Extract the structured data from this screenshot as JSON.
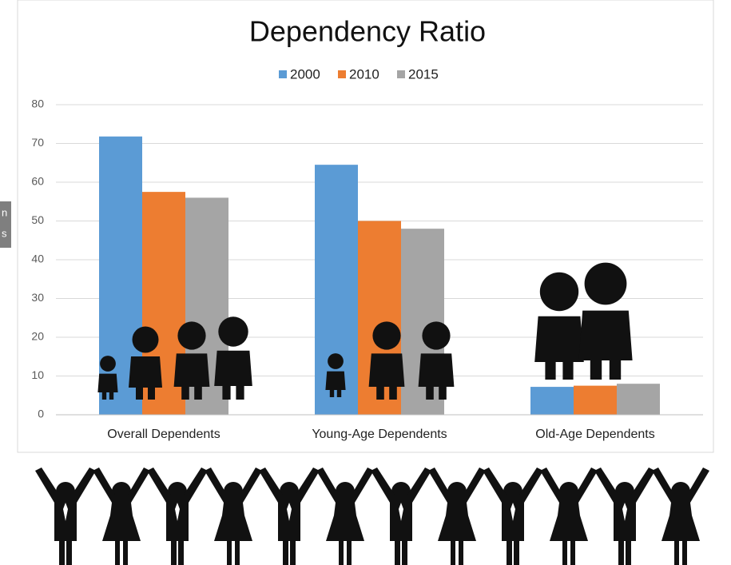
{
  "chart_data": {
    "type": "bar",
    "title": "Dependency Ratio",
    "categories": [
      "Overall Dependents",
      "Young-Age Dependents",
      "Old-Age Dependents"
    ],
    "series": [
      {
        "name": "2000",
        "color": "#5b9bd5",
        "values": [
          71.8,
          64.5,
          7.2
        ]
      },
      {
        "name": "2010",
        "color": "#ed7d31",
        "values": [
          57.5,
          50,
          7.5
        ]
      },
      {
        "name": "2015",
        "color": "#a5a5a5",
        "values": [
          56,
          48,
          8
        ]
      }
    ],
    "ylim": [
      0,
      80
    ],
    "yticks": [
      0,
      10,
      20,
      30,
      40,
      50,
      60,
      70,
      80
    ],
    "grid": true,
    "legend": "top"
  },
  "side_label_fragments": [
    "n",
    "s"
  ]
}
